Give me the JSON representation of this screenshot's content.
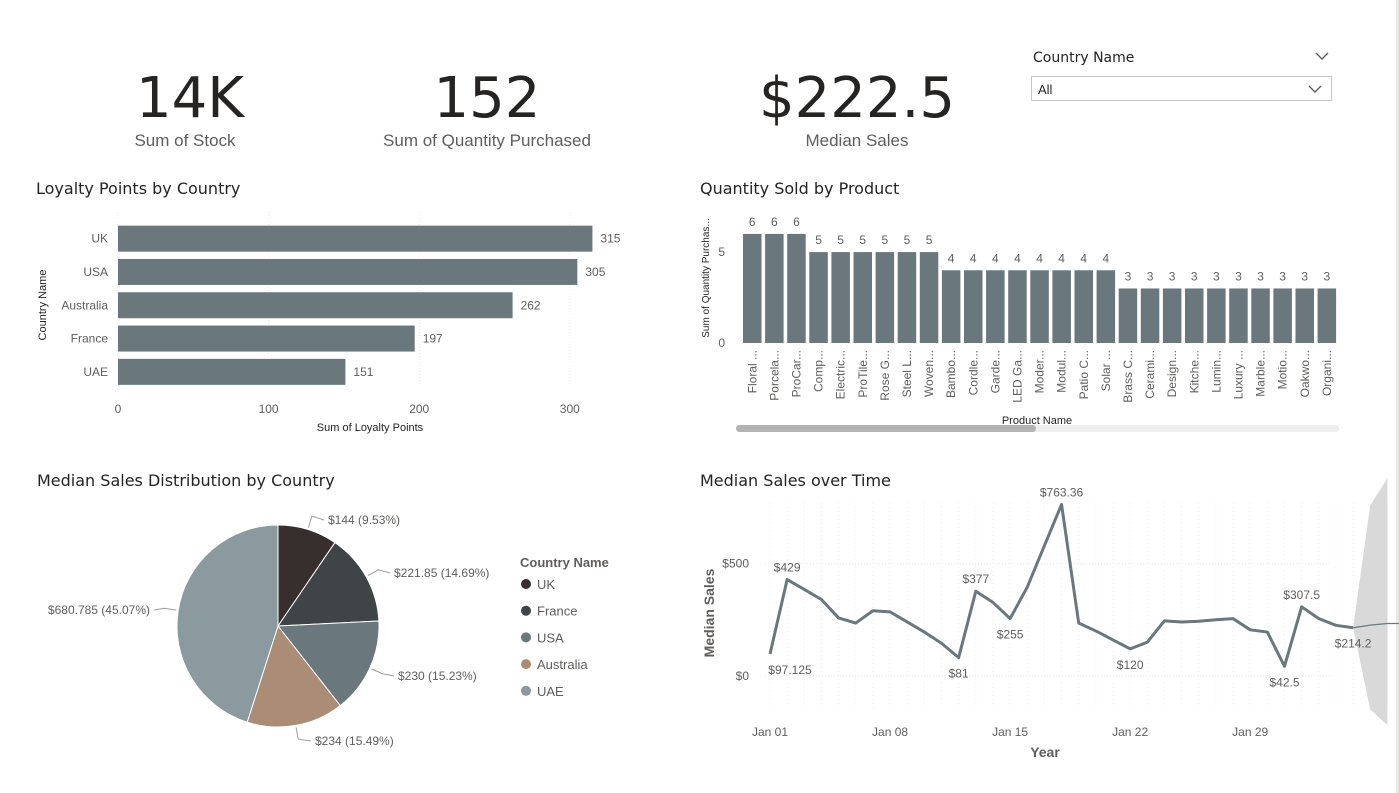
{
  "kpis": [
    {
      "value": "14K",
      "label": "Sum of  Stock"
    },
    {
      "value": "152",
      "label": "Sum of Quantity Purchased"
    },
    {
      "value": "$222.5",
      "label": "Median Sales"
    }
  ],
  "slicer": {
    "title": "Country Name",
    "value": "All"
  },
  "titles": {
    "loyalty": "Loyalty Points by Country",
    "quantity": "Quantity Sold by Product",
    "pie": "Median Sales Distribution by Country",
    "line": "Median Sales over Time"
  },
  "colors": {
    "bar": "#6a777c",
    "line": "#6a777c",
    "forecast_band": "#d9d9d9"
  },
  "chart_data": [
    {
      "type": "bar",
      "orientation": "horizontal",
      "title": "Loyalty Points by Country",
      "xlabel": "Sum of Loyalty Points",
      "ylabel": "Country Name",
      "categories": [
        "UK",
        "USA",
        "Australia",
        "France",
        "UAE"
      ],
      "values": [
        315,
        305,
        262,
        197,
        151
      ],
      "xlim": [
        0,
        330
      ],
      "xticks": [
        0,
        100,
        200,
        300
      ],
      "grid": true
    },
    {
      "type": "bar",
      "title": "Quantity Sold by Product",
      "xlabel": "Product Name",
      "ylabel": "Sum of Quantity Purchas...",
      "categories": [
        "Floral ...",
        "Porcela...",
        "ProCar...",
        "Comp...",
        "Electric...",
        "ProTile...",
        "Rose G...",
        "Steel L...",
        "Woven...",
        "Bambo...",
        "Cordle...",
        "Garde...",
        "LED Ga...",
        "Moder...",
        "Modul...",
        "Patio C...",
        "Solar ...",
        "Brass C...",
        "Cerami...",
        "Design...",
        "Kitche...",
        "Lumin...",
        "Luxury ...",
        "Marble...",
        "Motio...",
        "Oakwo...",
        "Organi..."
      ],
      "values": [
        6,
        6,
        6,
        5,
        5,
        5,
        5,
        5,
        5,
        4,
        4,
        4,
        4,
        4,
        4,
        4,
        4,
        3,
        3,
        3,
        3,
        3,
        3,
        3,
        3,
        3,
        3
      ],
      "ylim": [
        0,
        6.6
      ],
      "yticks": [
        0,
        5
      ]
    },
    {
      "type": "pie",
      "title": "Median Sales Distribution by Country",
      "legend_title": "Country Name",
      "legend_position": "right",
      "slices": [
        {
          "name": "UK",
          "value": 144,
          "label": "$144 (9.53%)",
          "color": "#372f2e"
        },
        {
          "name": "France",
          "value": 221.85,
          "label": "$221.85 (14.69%)",
          "color": "#3f4547"
        },
        {
          "name": "USA",
          "value": 230,
          "label": "$230 (15.23%)",
          "color": "#6a777c"
        },
        {
          "name": "Australia",
          "value": 234,
          "label": "$234 (15.49%)",
          "color": "#ab8c77"
        },
        {
          "name": "UAE",
          "value": 680.785,
          "label": "$680.785 (45.07%)",
          "color": "#8a9a9e"
        }
      ]
    },
    {
      "type": "line",
      "title": "Median Sales over Time",
      "xlabel": "Year",
      "ylabel": "Median Sales",
      "x_start": "Jan 01",
      "xticks": [
        "Jan 01",
        "Jan 08",
        "Jan 15",
        "Jan 22",
        "Jan 29"
      ],
      "yticks": [
        {
          "value": 0,
          "label": "$0"
        },
        {
          "value": 500,
          "label": "$500"
        }
      ],
      "ylim": [
        -130,
        770
      ],
      "values": [
        97.125,
        429,
        385,
        340,
        258,
        235,
        290,
        285,
        240,
        195,
        145,
        81,
        377,
        327,
        255,
        395,
        580,
        763.36,
        235,
        200,
        160,
        120,
        150,
        245,
        240,
        243,
        250,
        255,
        205,
        195,
        42.5,
        307.5,
        255,
        225,
        214.2
      ],
      "point_labels": [
        {
          "index": 0,
          "text": "$97.125"
        },
        {
          "index": 1,
          "text": "$429"
        },
        {
          "index": 11,
          "text": "$81"
        },
        {
          "index": 12,
          "text": "$377"
        },
        {
          "index": 14,
          "text": "$255"
        },
        {
          "index": 17,
          "text": "$763.36"
        },
        {
          "index": 21,
          "text": "$120"
        },
        {
          "index": 30,
          "text": "$42.5"
        },
        {
          "index": 31,
          "text": "$307.5"
        },
        {
          "index": 34,
          "text": "$214.2"
        }
      ],
      "forecast": {
        "values": [
          226,
          233,
          233
        ],
        "lower": [
          214.2,
          -150,
          -220
        ],
        "upper": [
          214.2,
          760,
          880
        ]
      }
    }
  ]
}
